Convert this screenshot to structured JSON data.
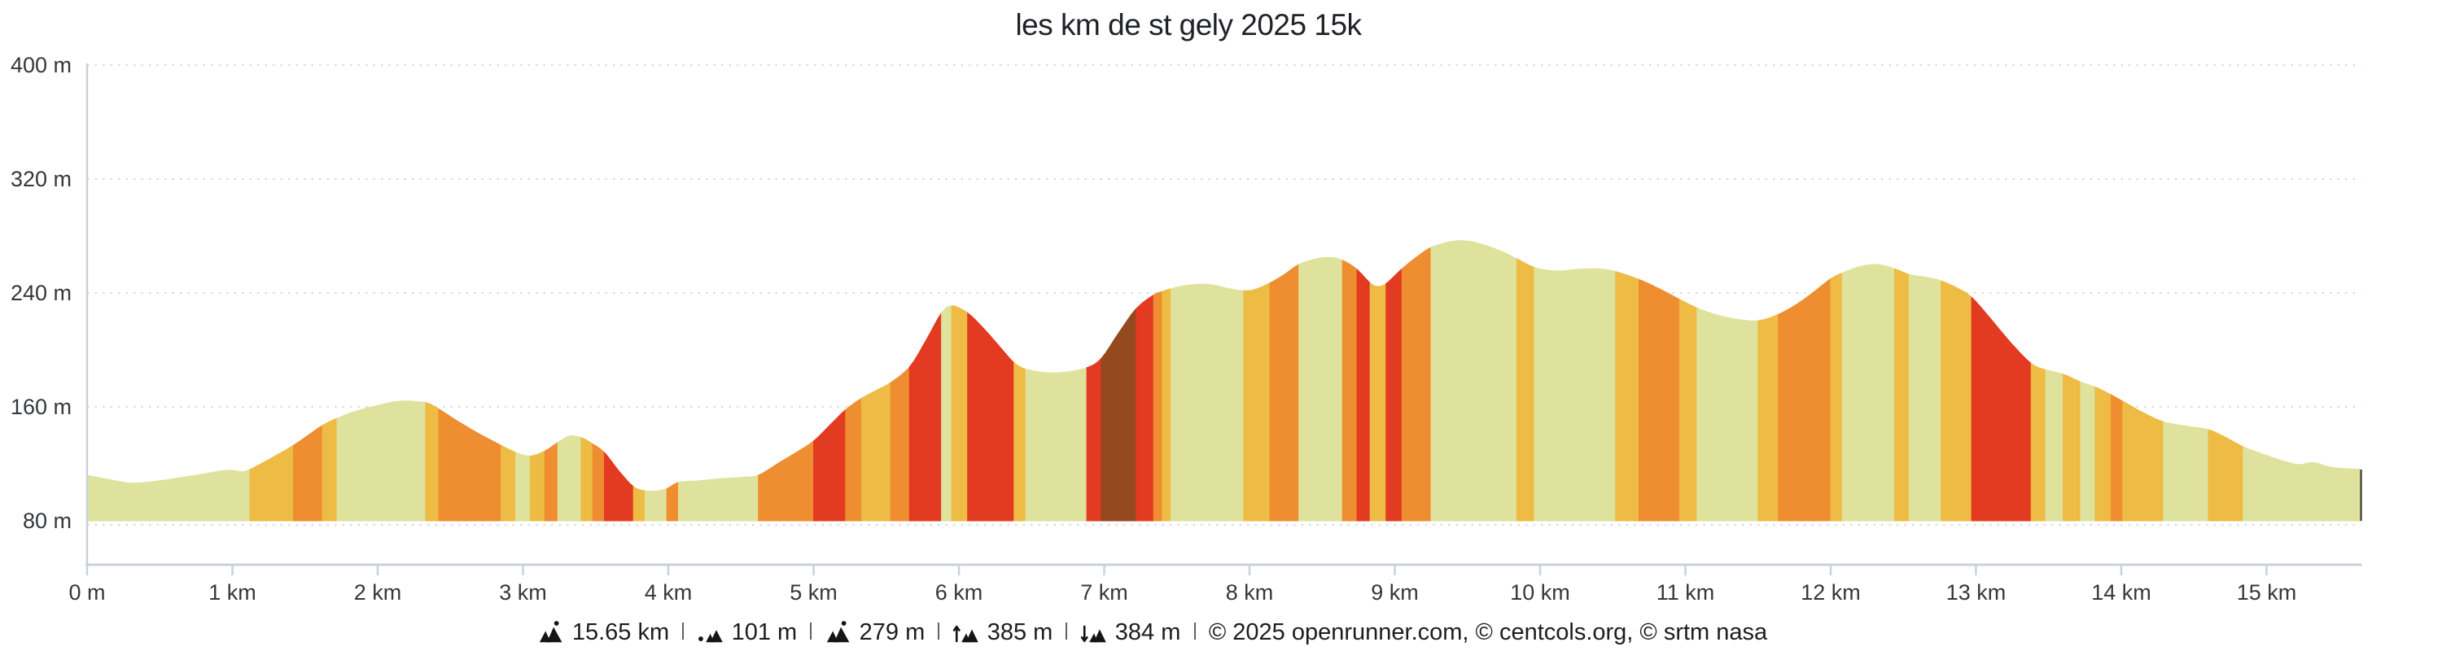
{
  "title": "les km de st gely 2025 15k",
  "chart_data": {
    "type": "area",
    "title": "les km de st gely 2025 15k",
    "x_ticks": [
      {
        "label": "0 m",
        "km": 0
      },
      {
        "label": "1 km",
        "km": 1
      },
      {
        "label": "2 km",
        "km": 2
      },
      {
        "label": "3 km",
        "km": 3
      },
      {
        "label": "4 km",
        "km": 4
      },
      {
        "label": "5 km",
        "km": 5
      },
      {
        "label": "6 km",
        "km": 6
      },
      {
        "label": "7 km",
        "km": 7
      },
      {
        "label": "8 km",
        "km": 8
      },
      {
        "label": "9 km",
        "km": 9
      },
      {
        "label": "10 km",
        "km": 10
      },
      {
        "label": "11 km",
        "km": 11
      },
      {
        "label": "12 km",
        "km": 12
      },
      {
        "label": "13 km",
        "km": 13
      },
      {
        "label": "14 km",
        "km": 14
      },
      {
        "label": "15 km",
        "km": 15
      }
    ],
    "y_ticks": [
      {
        "label": "80 m",
        "m": 80
      },
      {
        "label": "160 m",
        "m": 160
      },
      {
        "label": "240 m",
        "m": 240
      },
      {
        "label": "320 m",
        "m": 320
      },
      {
        "label": "400 m",
        "m": 400
      }
    ],
    "xlim": [
      0,
      15.65
    ],
    "ylim": [
      80,
      400
    ],
    "grid": "dotted-horizontal",
    "grade_names": {
      "f": "flat",
      "m": "moderate",
      "h": "hard",
      "s": "steep",
      "x": "extreme"
    },
    "grade_colors": {
      "f": "#DFE29D",
      "m": "#EEBB44",
      "h": "#EE8E30",
      "s": "#E33A22",
      "x": "#95491F"
    },
    "colors": {
      "grid": "#D9D9D9",
      "axis": "#C8D1DB",
      "text": "#33383D",
      "end_marker": "#4E4E3A"
    },
    "points": [
      [
        0.0,
        112,
        "f"
      ],
      [
        0.15,
        109,
        "f"
      ],
      [
        0.3,
        106.5,
        "f"
      ],
      [
        0.45,
        107.5,
        "f"
      ],
      [
        0.62,
        110,
        "f"
      ],
      [
        0.78,
        112.5,
        "f"
      ],
      [
        0.92,
        115,
        "f"
      ],
      [
        1.0,
        115.5,
        "f"
      ],
      [
        1.06,
        114.5,
        "f"
      ],
      [
        1.12,
        116,
        "m"
      ],
      [
        1.25,
        123,
        "m"
      ],
      [
        1.42,
        133,
        "h"
      ],
      [
        1.52,
        140,
        "h"
      ],
      [
        1.62,
        147,
        "m"
      ],
      [
        1.72,
        152,
        "f"
      ],
      [
        1.85,
        157,
        "f"
      ],
      [
        2.0,
        161,
        "f"
      ],
      [
        2.15,
        164,
        "f"
      ],
      [
        2.33,
        163,
        "m"
      ],
      [
        2.42,
        158.5,
        "h"
      ],
      [
        2.55,
        150,
        "h"
      ],
      [
        2.7,
        141,
        "h"
      ],
      [
        2.85,
        133,
        "m"
      ],
      [
        2.95,
        128,
        "f"
      ],
      [
        3.05,
        125.5,
        "m"
      ],
      [
        3.15,
        129,
        "h"
      ],
      [
        3.24,
        135,
        "f"
      ],
      [
        3.32,
        139.5,
        "f"
      ],
      [
        3.4,
        138.5,
        "m"
      ],
      [
        3.48,
        134,
        "h"
      ],
      [
        3.56,
        128,
        "s"
      ],
      [
        3.66,
        115,
        "s"
      ],
      [
        3.76,
        104,
        "m"
      ],
      [
        3.84,
        101,
        "f"
      ],
      [
        3.92,
        101,
        "f"
      ],
      [
        3.99,
        102.5,
        "h"
      ],
      [
        4.07,
        107,
        "f"
      ],
      [
        4.2,
        108,
        "f"
      ],
      [
        4.35,
        109.5,
        "f"
      ],
      [
        4.5,
        110.5,
        "f"
      ],
      [
        4.62,
        112,
        "h"
      ],
      [
        4.75,
        120,
        "h"
      ],
      [
        4.88,
        128,
        "h"
      ],
      [
        5.0,
        136,
        "s"
      ],
      [
        5.12,
        148,
        "s"
      ],
      [
        5.22,
        158,
        "h"
      ],
      [
        5.33,
        166,
        "m"
      ],
      [
        5.43,
        171.5,
        "m"
      ],
      [
        5.53,
        177,
        "h"
      ],
      [
        5.66,
        188,
        "s"
      ],
      [
        5.77,
        206,
        "s"
      ],
      [
        5.88,
        226,
        "f"
      ],
      [
        5.95,
        231,
        "m"
      ],
      [
        6.06,
        226,
        "s"
      ],
      [
        6.18,
        214,
        "s"
      ],
      [
        6.3,
        200,
        "s"
      ],
      [
        6.38,
        191,
        "m"
      ],
      [
        6.46,
        186.5,
        "f"
      ],
      [
        6.6,
        184,
        "f"
      ],
      [
        6.74,
        184.5,
        "f"
      ],
      [
        6.88,
        187.5,
        "s"
      ],
      [
        6.98,
        194,
        "x"
      ],
      [
        7.1,
        212,
        "x"
      ],
      [
        7.22,
        229,
        "s"
      ],
      [
        7.34,
        238.5,
        "h"
      ],
      [
        7.4,
        241,
        "m"
      ],
      [
        7.46,
        243,
        "f"
      ],
      [
        7.58,
        245.5,
        "f"
      ],
      [
        7.72,
        246,
        "f"
      ],
      [
        7.86,
        243,
        "f"
      ],
      [
        7.96,
        241.5,
        "m"
      ],
      [
        8.04,
        242.5,
        "m"
      ],
      [
        8.14,
        247,
        "h"
      ],
      [
        8.24,
        253,
        "h"
      ],
      [
        8.34,
        260,
        "f"
      ],
      [
        8.46,
        264,
        "f"
      ],
      [
        8.56,
        265,
        "f"
      ],
      [
        8.64,
        263,
        "h"
      ],
      [
        8.74,
        256.5,
        "s"
      ],
      [
        8.83,
        247,
        "m"
      ],
      [
        8.88,
        244.5,
        "m"
      ],
      [
        8.94,
        246.5,
        "s"
      ],
      [
        9.05,
        257,
        "h"
      ],
      [
        9.16,
        266,
        "h"
      ],
      [
        9.25,
        272,
        "f"
      ],
      [
        9.38,
        276,
        "f"
      ],
      [
        9.5,
        276.5,
        "f"
      ],
      [
        9.62,
        273.5,
        "f"
      ],
      [
        9.74,
        269,
        "f"
      ],
      [
        9.84,
        264,
        "m"
      ],
      [
        9.96,
        258,
        "f"
      ],
      [
        10.1,
        255.5,
        "f"
      ],
      [
        10.25,
        256.5,
        "f"
      ],
      [
        10.4,
        257,
        "f"
      ],
      [
        10.52,
        255,
        "m"
      ],
      [
        10.68,
        249.5,
        "h"
      ],
      [
        10.82,
        243,
        "h"
      ],
      [
        10.96,
        235.5,
        "m"
      ],
      [
        11.08,
        229.5,
        "f"
      ],
      [
        11.22,
        224.5,
        "f"
      ],
      [
        11.36,
        221.5,
        "f"
      ],
      [
        11.5,
        220.5,
        "m"
      ],
      [
        11.64,
        225,
        "h"
      ],
      [
        11.78,
        233,
        "h"
      ],
      [
        11.9,
        242,
        "h"
      ],
      [
        12.0,
        250,
        "m"
      ],
      [
        12.08,
        254,
        "f"
      ],
      [
        12.2,
        258.5,
        "f"
      ],
      [
        12.32,
        260,
        "f"
      ],
      [
        12.44,
        257,
        "m"
      ],
      [
        12.54,
        253,
        "f"
      ],
      [
        12.66,
        251,
        "f"
      ],
      [
        12.76,
        248.5,
        "m"
      ],
      [
        12.88,
        243,
        "m"
      ],
      [
        12.97,
        237,
        "s"
      ],
      [
        13.1,
        222,
        "s"
      ],
      [
        13.24,
        205,
        "s"
      ],
      [
        13.38,
        190.5,
        "m"
      ],
      [
        13.48,
        186,
        "f"
      ],
      [
        13.6,
        183,
        "m"
      ],
      [
        13.72,
        177.5,
        "f"
      ],
      [
        13.82,
        174,
        "m"
      ],
      [
        13.93,
        168.5,
        "h"
      ],
      [
        14.01,
        164,
        "m"
      ],
      [
        14.15,
        156,
        "m"
      ],
      [
        14.29,
        149.5,
        "f"
      ],
      [
        14.45,
        146.5,
        "f"
      ],
      [
        14.6,
        144,
        "m"
      ],
      [
        14.72,
        138.5,
        "m"
      ],
      [
        14.84,
        132,
        "f"
      ],
      [
        14.97,
        127,
        "f"
      ],
      [
        15.1,
        122.5,
        "f"
      ],
      [
        15.22,
        119.5,
        "f"
      ],
      [
        15.32,
        121,
        "f"
      ],
      [
        15.45,
        117.5,
        "f"
      ],
      [
        15.65,
        116,
        "f"
      ]
    ]
  },
  "footer": {
    "separator": "l",
    "stats": [
      {
        "icon": "distance-icon",
        "value": "15.65 km"
      },
      {
        "icon": "min-elevation-icon",
        "value": "101 m"
      },
      {
        "icon": "max-elevation-icon",
        "value": "279 m"
      },
      {
        "icon": "elevation-gain-icon",
        "value": "385 m"
      },
      {
        "icon": "elevation-loss-icon",
        "value": "384 m"
      }
    ],
    "credits": "© 2025 openrunner.com, © centcols.org, © srtm nasa"
  }
}
